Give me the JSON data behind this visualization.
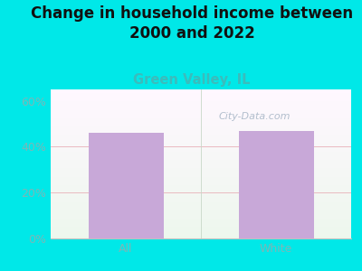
{
  "categories": [
    "All",
    "White"
  ],
  "values": [
    46.0,
    47.0
  ],
  "bar_color": "#c8a8d8",
  "title": "Change in household income between\n2000 and 2022",
  "subtitle": "Green Valley, IL",
  "subtitle_color": "#3bbcbc",
  "title_color": "#111111",
  "background_color": "#00e8e8",
  "ylim": [
    0,
    65
  ],
  "yticks": [
    0,
    20,
    40,
    60
  ],
  "yticklabels": [
    "0%",
    "20%",
    "40%",
    "60%"
  ],
  "watermark": "City-Data.com",
  "watermark_color": "#aab8c8",
  "grid_color": "#e8b0b8",
  "tick_color": "#7ab8b8",
  "title_fontsize": 12,
  "subtitle_fontsize": 10.5,
  "tick_fontsize": 9,
  "bar_width": 0.5
}
